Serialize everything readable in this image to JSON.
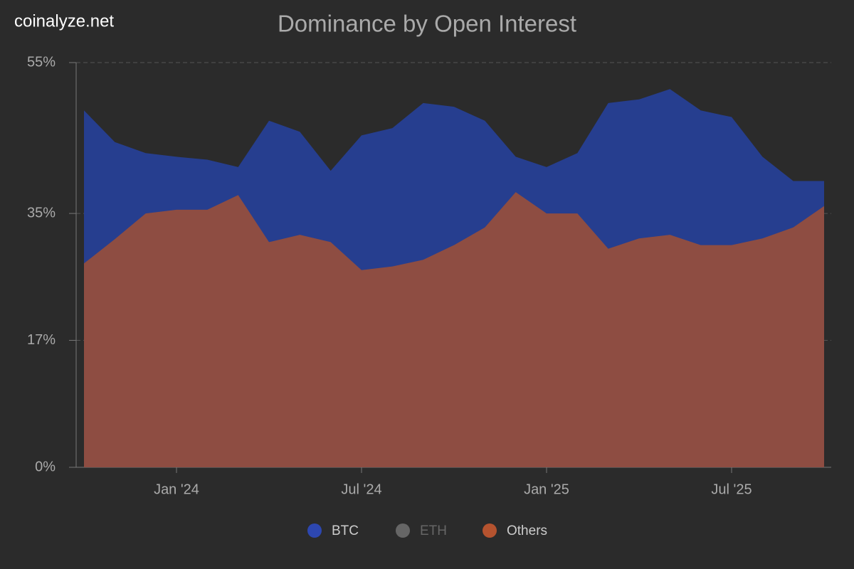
{
  "watermark": "coinalyze.net",
  "chart_data": {
    "type": "area",
    "title": "Dominance by Open Interest",
    "x": [
      "2023-10",
      "2023-11",
      "2023-12",
      "2024-01",
      "2024-02",
      "2024-03",
      "2024-04",
      "2024-05",
      "2024-06",
      "2024-07",
      "2024-08",
      "2024-09",
      "2024-10",
      "2024-11",
      "2024-12",
      "2025-01",
      "2025-02",
      "2025-03",
      "2025-04",
      "2025-05",
      "2025-06",
      "2025-07",
      "2025-08",
      "2025-09",
      "2025-10"
    ],
    "series": [
      {
        "name": "BTC",
        "color": "#2d47b0",
        "fill": "#263e8f",
        "visible": true,
        "values": [
          48.5,
          44.2,
          42.7,
          42.2,
          41.8,
          40.8,
          47.1,
          45.6,
          40.3,
          45.1,
          46.1,
          49.5,
          49,
          47.1,
          42.2,
          40.8,
          42.7,
          49.5,
          50,
          51.4,
          48.5,
          47.6,
          42.2,
          38.9,
          38.9
        ]
      },
      {
        "name": "ETH",
        "color": "#666666",
        "fill": "#666666",
        "visible": false,
        "values": [
          null,
          null,
          null,
          null,
          null,
          null,
          null,
          null,
          null,
          null,
          null,
          null,
          null,
          null,
          null,
          null,
          null,
          null,
          null,
          null,
          null,
          null,
          null,
          null,
          null
        ]
      },
      {
        "name": "Others",
        "color": "#b5532f",
        "fill": "#8e4d42",
        "visible": true,
        "values": [
          27.7,
          31,
          34.5,
          35,
          35,
          37,
          30.6,
          31.6,
          30.6,
          26.8,
          27.3,
          28.2,
          30.2,
          32.6,
          37.4,
          34.5,
          34.5,
          29.7,
          31.1,
          31.6,
          30.2,
          30.2,
          31.1,
          32.6,
          35.5
        ]
      }
    ],
    "xticks": [
      {
        "value": "2024-01",
        "label": "Jan '24"
      },
      {
        "value": "2024-07",
        "label": "Jul '24"
      },
      {
        "value": "2025-01",
        "label": "Jan '25"
      },
      {
        "value": "2025-07",
        "label": "Jul '25"
      }
    ],
    "ylim": [
      0,
      55
    ],
    "yticks": [
      {
        "value": 0,
        "label": "0%"
      },
      {
        "value": 17.25,
        "label": "17%"
      },
      {
        "value": 34.5,
        "label": "35%"
      },
      {
        "value": 55,
        "label": "55%"
      }
    ],
    "grid": true,
    "legend": "bottom"
  }
}
